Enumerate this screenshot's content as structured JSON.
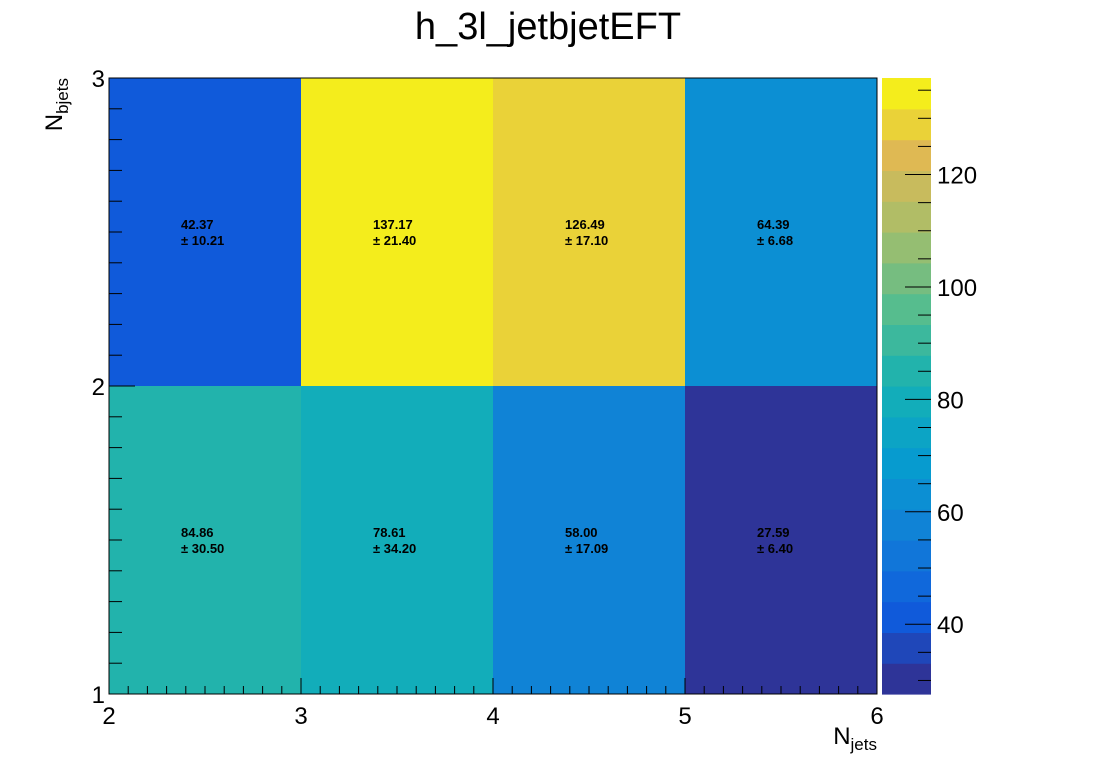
{
  "chart_data": {
    "type": "heatmap",
    "title": "h_3l_jetbjetEFT",
    "xlabel": {
      "base": "N",
      "sub": "jets"
    },
    "ylabel": {
      "base": "N",
      "sub": "bjets"
    },
    "x_edges": [
      2,
      3,
      4,
      5,
      6
    ],
    "y_edges": [
      1,
      2,
      3
    ],
    "x_tick_labels": [
      "2",
      "3",
      "4",
      "5",
      "6"
    ],
    "y_tick_labels": [
      "1",
      "2",
      "3"
    ],
    "cells": [
      {
        "x_bin": 0,
        "y_bin": 0,
        "value": 84.86,
        "value_label": "84.86",
        "error_label": "± 30.50"
      },
      {
        "x_bin": 1,
        "y_bin": 0,
        "value": 78.61,
        "value_label": "78.61",
        "error_label": "± 34.20"
      },
      {
        "x_bin": 2,
        "y_bin": 0,
        "value": 58.0,
        "value_label": "58.00",
        "error_label": "± 17.09"
      },
      {
        "x_bin": 3,
        "y_bin": 0,
        "value": 27.59,
        "value_label": "27.59",
        "error_label": "± 6.40"
      },
      {
        "x_bin": 0,
        "y_bin": 1,
        "value": 42.37,
        "value_label": "42.37",
        "error_label": "± 10.21"
      },
      {
        "x_bin": 1,
        "y_bin": 1,
        "value": 137.17,
        "value_label": "137.17",
        "error_label": "± 21.40"
      },
      {
        "x_bin": 2,
        "y_bin": 1,
        "value": 126.49,
        "value_label": "126.49",
        "error_label": "± 17.10"
      },
      {
        "x_bin": 3,
        "y_bin": 1,
        "value": 64.39,
        "value_label": "64.39",
        "error_label": "± 6.68"
      }
    ],
    "z_range": [
      27.59,
      137.17
    ],
    "colorbar_ticks": [
      40,
      60,
      80,
      100,
      120
    ],
    "palette": "ROOT kBird",
    "grid": false,
    "legend": "colorbar right"
  }
}
